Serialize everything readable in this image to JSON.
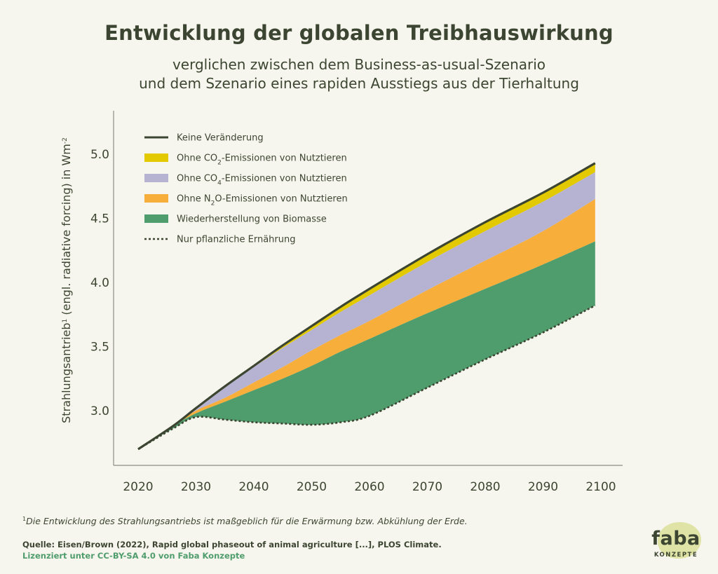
{
  "title": "Entwicklung der globalen Treibhauswirkung",
  "subtitle_line1": "verglichen zwischen dem Business-as-usual-Szenario",
  "subtitle_line2": "und dem Szenario eines rapiden Ausstiegs aus der Tierhaltung",
  "footnote_mark": "1",
  "footnote_text": "Die Entwicklung des Strahlungsantriebs ist maßgeblich für die Erwärmung bzw. Abkühlung der Erde.",
  "source": "Quelle: Eisen/Brown (2022), Rapid global phaseout of animal agriculture [...], PLOS Climate.",
  "license": "Lizenziert unter CC-BY-SA 4.0 von Faba Konzepte",
  "logo": {
    "word": "faba",
    "sub": "KONZEPTE"
  },
  "colors": {
    "text": "#3c4531",
    "line": "#3c4531",
    "co2": "#e2c900",
    "ch4": "#b5b3d1",
    "n2o": "#f8ae3a",
    "biomass": "#4f9c6c",
    "dotted": "#3c4531",
    "background": "#f7f6ee",
    "logo_blob": "#dfe3a6",
    "license": "#4f9c6c"
  },
  "chart_data": {
    "type": "area",
    "title": "Entwicklung der globalen Treibhauswirkung",
    "xlabel": "",
    "ylabel": {
      "main": "Strahlungsantrieb",
      "mark": "1",
      "rest": " (engl. radiative forcing) in Wm",
      "exp": "-2"
    },
    "xlim": [
      2020,
      2100
    ],
    "ylim": [
      2.6,
      5.4
    ],
    "xticks": [
      2020,
      2030,
      2040,
      2050,
      2060,
      2070,
      2080,
      2090,
      2100
    ],
    "yticks": [
      "3.0",
      "3.5",
      "4.0",
      "4.5",
      "5.0"
    ],
    "grid": false,
    "legend_position": "top-left",
    "x": [
      2020,
      2026,
      2030,
      2035,
      2040,
      2045,
      2050,
      2055,
      2060,
      2070,
      2080,
      2090,
      2099
    ],
    "series": [
      {
        "key": "keine",
        "name": "Keine Veränderung",
        "style": "line",
        "values": [
          2.7,
          2.88,
          3.02,
          3.19,
          3.35,
          3.51,
          3.66,
          3.81,
          3.95,
          4.22,
          4.47,
          4.7,
          4.93
        ]
      },
      {
        "key": "co2",
        "name_pre": "Ohne CO",
        "name_sub": "2",
        "name_post": "-Emissionen von Nutztieren",
        "style": "area",
        "values": [
          2.7,
          2.88,
          3.01,
          3.18,
          3.34,
          3.49,
          3.63,
          3.77,
          3.9,
          4.16,
          4.4,
          4.63,
          4.86
        ]
      },
      {
        "key": "ch4",
        "name_pre": "Ohne CO",
        "name_sub": "4",
        "name_post": "-Emissionen von Nutztieren",
        "style": "area",
        "values": [
          2.7,
          2.88,
          3.0,
          3.1,
          3.22,
          3.34,
          3.47,
          3.59,
          3.7,
          3.94,
          4.17,
          4.4,
          4.65
        ]
      },
      {
        "key": "n2o",
        "name_pre": "Ohne N",
        "name_sub": "2",
        "name_post": "O-Emissionen von Nutztieren",
        "style": "area",
        "values": [
          2.7,
          2.88,
          2.98,
          3.07,
          3.16,
          3.25,
          3.35,
          3.46,
          3.56,
          3.76,
          3.95,
          4.14,
          4.32
        ]
      },
      {
        "key": "biomass",
        "name": "Wiederherstellung von Biomasse",
        "style": "area",
        "values": [
          2.7,
          2.86,
          2.95,
          2.93,
          2.91,
          2.9,
          2.89,
          2.91,
          2.96,
          3.18,
          3.4,
          3.61,
          3.82
        ]
      },
      {
        "key": "dotted",
        "name": "Nur pflanzliche Ernährung",
        "style": "dotted",
        "values": [
          2.7,
          2.86,
          2.95,
          2.93,
          2.91,
          2.9,
          2.89,
          2.91,
          2.96,
          3.18,
          3.4,
          3.61,
          3.82
        ]
      }
    ]
  }
}
